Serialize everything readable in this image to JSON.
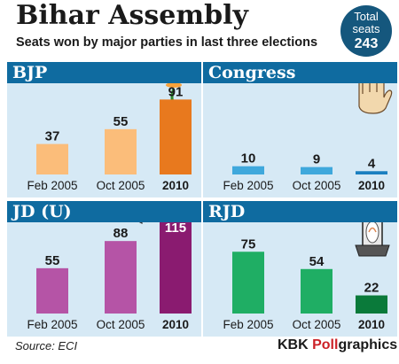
{
  "title": "Bihar Assembly",
  "subtitle": "Seats won by major parties in last three elections",
  "total_seats": {
    "line1": "Total",
    "line2": "seats",
    "value": "243"
  },
  "source": "Source: ECI",
  "brand": {
    "part1": "KBK ",
    "part2": "Poll",
    "part3": "graphics"
  },
  "colors": {
    "header_blue": "#0f6ba0",
    "panel_bg": "#d6e9f5",
    "BJP": [
      "#fbbd7a",
      "#fbbd7a",
      "#e8791e"
    ],
    "Congress": [
      "#3fa8dc",
      "#3fa8dc",
      "#1a7fc0"
    ],
    "JD (U)": [
      "#b554a6",
      "#b554a6",
      "#8a1b70"
    ],
    "RJD": [
      "#1fae64",
      "#1fae64",
      "#0a7a3a"
    ]
  },
  "chart_data": [
    {
      "type": "bar",
      "title": "BJP",
      "categories": [
        "Feb 2005",
        "Oct 2005",
        "2010"
      ],
      "values": [
        37,
        55,
        91
      ],
      "icon": "lotus-icon"
    },
    {
      "type": "bar",
      "title": "Congress",
      "categories": [
        "Feb 2005",
        "Oct 2005",
        "2010"
      ],
      "values": [
        10,
        9,
        4
      ],
      "icon": "hand-icon"
    },
    {
      "type": "bar",
      "title": "JD (U)",
      "categories": [
        "Feb 2005",
        "Oct 2005",
        "2010"
      ],
      "values": [
        55,
        88,
        115
      ],
      "icon": "arrow-icon"
    },
    {
      "type": "bar",
      "title": "RJD",
      "categories": [
        "Feb 2005",
        "Oct 2005",
        "2010"
      ],
      "values": [
        75,
        54,
        22
      ],
      "icon": "lantern-icon"
    }
  ]
}
